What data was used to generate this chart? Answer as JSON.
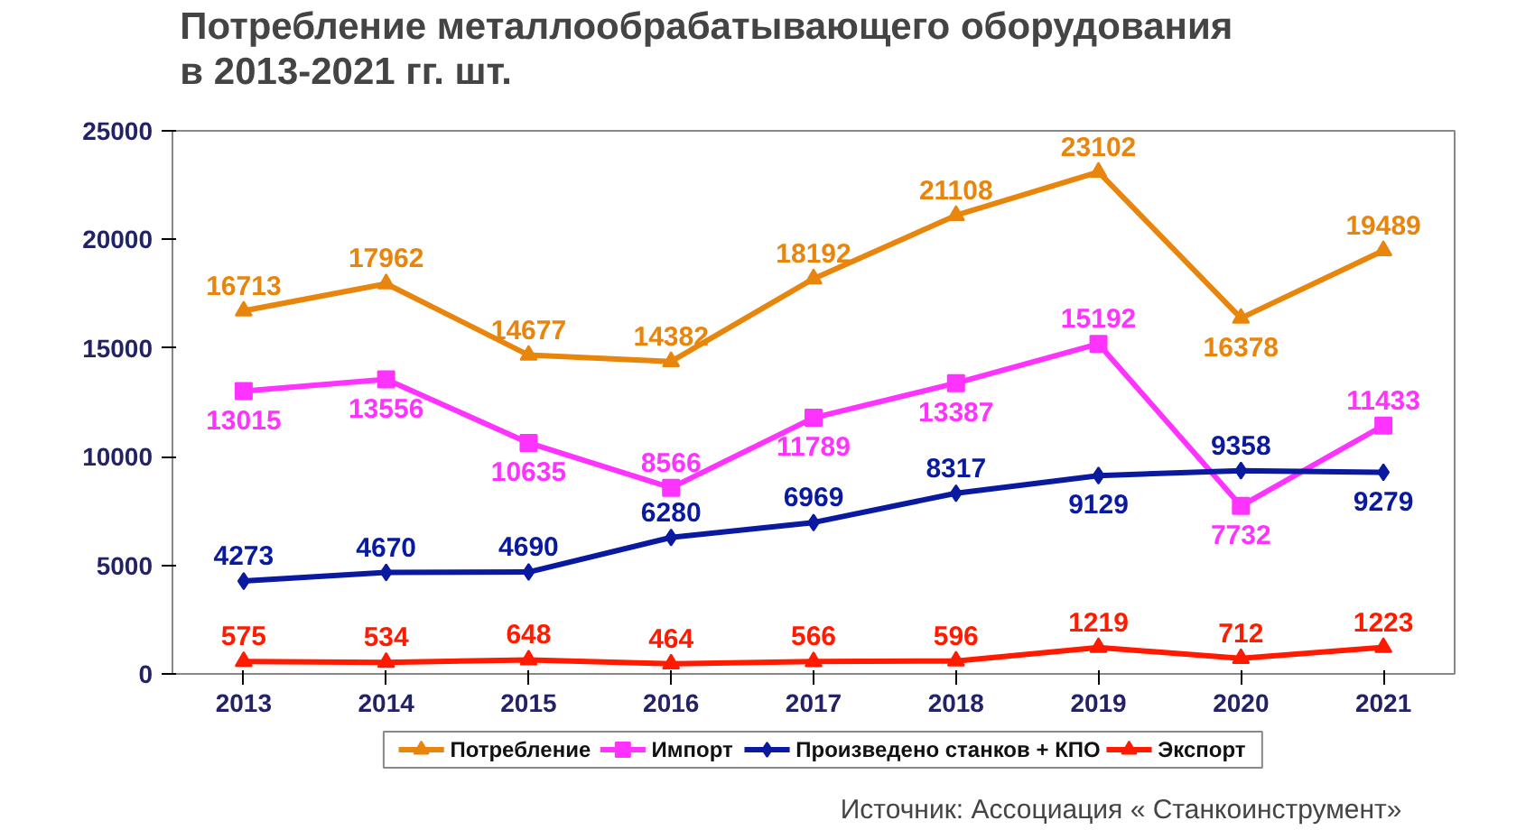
{
  "chart_data": {
    "type": "line",
    "title": "Потребление металлообрабатывающего оборудования\nв 2013-2021 гг. шт.",
    "categories": [
      "2013",
      "2014",
      "2015",
      "2016",
      "2017",
      "2018",
      "2019",
      "2020",
      "2021"
    ],
    "series": [
      {
        "name": "Потребление",
        "color": "#e8850c",
        "marker": "triangle",
        "values": [
          16713,
          17962,
          14677,
          14382,
          18192,
          21108,
          23102,
          16378,
          19489
        ]
      },
      {
        "name": "Импорт",
        "color": "#ff33ff",
        "marker": "square",
        "values": [
          13015,
          13556,
          10635,
          8566,
          11789,
          13387,
          15192,
          7732,
          11433
        ]
      },
      {
        "name": "Произведено станков + КПО",
        "color": "#0a1aa0",
        "marker": "diamond",
        "values": [
          4273,
          4670,
          4690,
          6280,
          6969,
          8317,
          9129,
          9358,
          9279
        ]
      },
      {
        "name": "Экспорт",
        "color": "#ff1a00",
        "marker": "triangle",
        "values": [
          575,
          534,
          648,
          464,
          566,
          596,
          1219,
          712,
          1223
        ]
      }
    ],
    "ylim": [
      0,
      25000
    ],
    "yticks": [
      0,
      5000,
      10000,
      15000,
      20000,
      25000
    ],
    "data_labels": true,
    "grid": false,
    "legend": "bottom",
    "annotations": [
      "Источник: Ассоциация « Станкоинструмент»"
    ]
  }
}
